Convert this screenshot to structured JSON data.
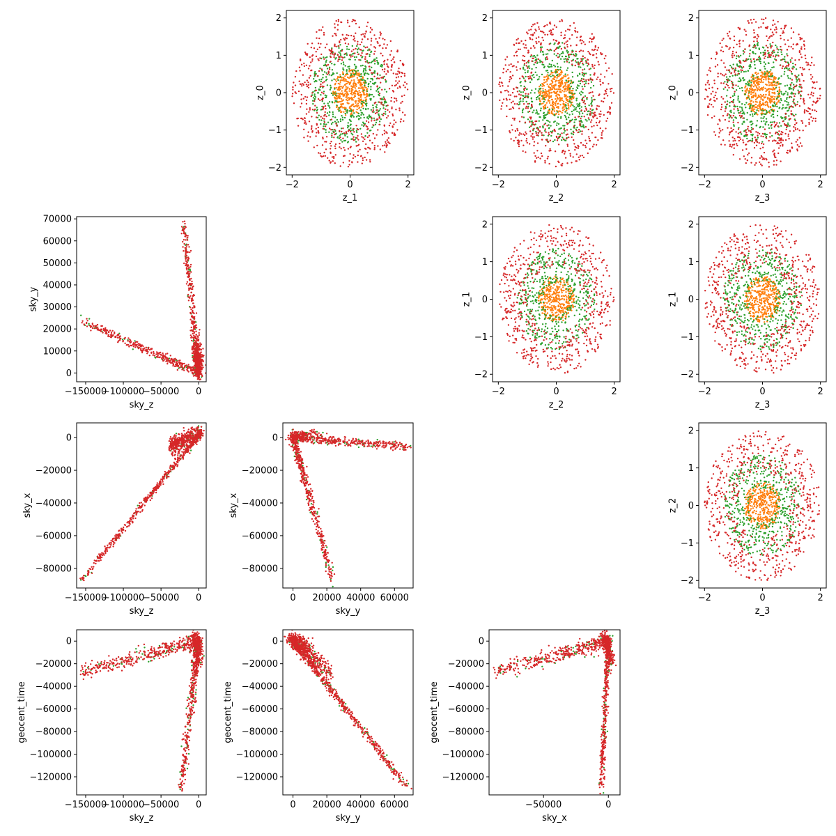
{
  "colors": {
    "orange": "#ff7f0e",
    "green": "#2ca02c",
    "red": "#d62728",
    "axes": "#000000",
    "background": "#ffffff"
  },
  "chart_data": [
    {
      "id": "z1-z0",
      "type": "scatter",
      "xlabel": "z_1",
      "ylabel": "z_0",
      "xlim": [
        -2.2,
        2.2
      ],
      "ylim": [
        -2.2,
        2.2
      ],
      "xticks": [
        -2,
        0,
        2
      ],
      "yticks": [
        -2,
        -1,
        0,
        1,
        2
      ],
      "series": [
        {
          "color": "orange",
          "shape": "disk",
          "radius_max": 0.62,
          "count": 380
        },
        {
          "color": "green",
          "shape": "ring",
          "radius_min": 0.45,
          "radius_max": 1.35,
          "count": 480
        },
        {
          "color": "red",
          "shape": "ring",
          "radius_min": 0.9,
          "radius_max": 2.0,
          "count": 620
        }
      ]
    },
    {
      "id": "z2-z0",
      "type": "scatter",
      "xlabel": "z_2",
      "ylabel": "z_0",
      "xlim": [
        -2.2,
        2.2
      ],
      "ylim": [
        -2.2,
        2.2
      ],
      "xticks": [
        -2,
        0,
        2
      ],
      "yticks": [
        -2,
        -1,
        0,
        1,
        2
      ],
      "series": [
        {
          "color": "orange",
          "shape": "disk",
          "radius_max": 0.62,
          "count": 380
        },
        {
          "color": "green",
          "shape": "ring",
          "radius_min": 0.45,
          "radius_max": 1.35,
          "count": 480
        },
        {
          "color": "red",
          "shape": "ring",
          "radius_min": 0.9,
          "radius_max": 2.0,
          "count": 620
        }
      ]
    },
    {
      "id": "z3-z0",
      "type": "scatter",
      "xlabel": "z_3",
      "ylabel": "z_0",
      "xlim": [
        -2.2,
        2.2
      ],
      "ylim": [
        -2.2,
        2.2
      ],
      "xticks": [
        -2,
        0,
        2
      ],
      "yticks": [
        -2,
        -1,
        0,
        1,
        2
      ],
      "series": [
        {
          "color": "orange",
          "shape": "disk",
          "radius_max": 0.62,
          "count": 380
        },
        {
          "color": "green",
          "shape": "ring",
          "radius_min": 0.45,
          "radius_max": 1.35,
          "count": 480
        },
        {
          "color": "red",
          "shape": "ring",
          "radius_min": 0.9,
          "radius_max": 2.0,
          "count": 620
        }
      ]
    },
    {
      "id": "z2-z1",
      "type": "scatter",
      "xlabel": "z_2",
      "ylabel": "z_1",
      "xlim": [
        -2.2,
        2.2
      ],
      "ylim": [
        -2.2,
        2.2
      ],
      "xticks": [
        -2,
        0,
        2
      ],
      "yticks": [
        -2,
        -1,
        0,
        1,
        2
      ],
      "series": [
        {
          "color": "orange",
          "shape": "disk",
          "radius_max": 0.62,
          "count": 380
        },
        {
          "color": "green",
          "shape": "ring",
          "radius_min": 0.45,
          "radius_max": 1.35,
          "count": 480
        },
        {
          "color": "red",
          "shape": "ring",
          "radius_min": 0.9,
          "radius_max": 2.0,
          "count": 620
        }
      ]
    },
    {
      "id": "z3-z1",
      "type": "scatter",
      "xlabel": "z_3",
      "ylabel": "z_1",
      "xlim": [
        -2.2,
        2.2
      ],
      "ylim": [
        -2.2,
        2.2
      ],
      "xticks": [
        -2,
        0,
        2
      ],
      "yticks": [
        -2,
        -1,
        0,
        1,
        2
      ],
      "series": [
        {
          "color": "orange",
          "shape": "disk",
          "radius_max": 0.62,
          "count": 380
        },
        {
          "color": "green",
          "shape": "ring",
          "radius_min": 0.45,
          "radius_max": 1.35,
          "count": 480
        },
        {
          "color": "red",
          "shape": "ring",
          "radius_min": 0.9,
          "radius_max": 2.0,
          "count": 620
        }
      ]
    },
    {
      "id": "z3-z2",
      "type": "scatter",
      "xlabel": "z_3",
      "ylabel": "z_2",
      "xlim": [
        -2.2,
        2.2
      ],
      "ylim": [
        -2.2,
        2.2
      ],
      "xticks": [
        -2,
        0,
        2
      ],
      "yticks": [
        -2,
        -1,
        0,
        1,
        2
      ],
      "series": [
        {
          "color": "orange",
          "shape": "disk",
          "radius_max": 0.62,
          "count": 380
        },
        {
          "color": "green",
          "shape": "ring",
          "radius_min": 0.45,
          "radius_max": 1.35,
          "count": 480
        },
        {
          "color": "red",
          "shape": "ring",
          "radius_min": 0.9,
          "radius_max": 2.0,
          "count": 620
        }
      ]
    },
    {
      "id": "skyz-skyy",
      "type": "scatter",
      "xlabel": "sky_z",
      "ylabel": "sky_y",
      "xlim": [
        -162000,
        10000
      ],
      "ylim": [
        -4000,
        71000
      ],
      "xticks": [
        -150000,
        -100000,
        -50000,
        0
      ],
      "yticks": [
        0,
        10000,
        20000,
        30000,
        40000,
        50000,
        60000,
        70000
      ],
      "series": [
        {
          "color": "green",
          "shape": "branches",
          "count": 120,
          "branches": [
            {
              "from": [
                0,
                0
              ],
              "to": [
                -155000,
                23500
              ],
              "weight": 0.35,
              "spread": [
                3000,
                900
              ]
            },
            {
              "from": [
                0,
                0
              ],
              "to": [
                -20000,
                68000
              ],
              "weight": 0.35,
              "spread": [
                2000,
                1500
              ]
            },
            {
              "from": [
                -3000,
                8000
              ],
              "to": [
                1500,
                4000
              ],
              "weight": 0.3,
              "spread": [
                3000,
                4000
              ]
            }
          ]
        },
        {
          "color": "red",
          "shape": "branches",
          "count": 1000,
          "branches": [
            {
              "from": [
                0,
                0
              ],
              "to": [
                -155000,
                23500
              ],
              "weight": 0.35,
              "spread": [
                3000,
                900
              ]
            },
            {
              "from": [
                0,
                0
              ],
              "to": [
                -20000,
                68000
              ],
              "weight": 0.35,
              "spread": [
                2000,
                1500
              ]
            },
            {
              "from": [
                -3000,
                8000
              ],
              "to": [
                1500,
                4000
              ],
              "weight": 0.3,
              "spread": [
                3000,
                4000
              ]
            }
          ]
        }
      ]
    },
    {
      "id": "skyz-skyx",
      "type": "scatter",
      "xlabel": "sky_z",
      "ylabel": "sky_x",
      "xlim": [
        -162000,
        10000
      ],
      "ylim": [
        -92000,
        9000
      ],
      "xticks": [
        -150000,
        -100000,
        -50000,
        0
      ],
      "yticks": [
        -80000,
        -60000,
        -40000,
        -20000,
        0
      ],
      "series": [
        {
          "color": "green",
          "shape": "branches",
          "count": 100,
          "branches": [
            {
              "from": [
                3000,
                3000
              ],
              "to": [
                -155000,
                -87000
              ],
              "weight": 0.55,
              "spread": [
                1500,
                1000
              ]
            },
            {
              "from": [
                -35000,
                -5000
              ],
              "to": [
                3000,
                3000
              ],
              "weight": 0.45,
              "spread": [
                2500,
                2500
              ]
            }
          ]
        },
        {
          "color": "red",
          "shape": "branches",
          "count": 900,
          "branches": [
            {
              "from": [
                3000,
                3000
              ],
              "to": [
                -155000,
                -87000
              ],
              "weight": 0.55,
              "spread": [
                1500,
                1000
              ]
            },
            {
              "from": [
                -35000,
                -5000
              ],
              "to": [
                3000,
                3000
              ],
              "weight": 0.45,
              "spread": [
                2500,
                2500
              ]
            }
          ]
        }
      ]
    },
    {
      "id": "skyy-skyx",
      "type": "scatter",
      "xlabel": "sky_y",
      "ylabel": "sky_x",
      "xlim": [
        -6000,
        71000
      ],
      "ylim": [
        -92000,
        9000
      ],
      "xticks": [
        0,
        20000,
        40000,
        60000
      ],
      "yticks": [
        -80000,
        -60000,
        -40000,
        -20000,
        0
      ],
      "series": [
        {
          "color": "green",
          "shape": "branches",
          "count": 120,
          "branches": [
            {
              "from": [
                0,
                0
              ],
              "to": [
                68000,
                -5500
              ],
              "weight": 0.45,
              "spread": [
                1500,
                1200
              ]
            },
            {
              "from": [
                0,
                0
              ],
              "to": [
                23500,
                -87000
              ],
              "weight": 0.45,
              "spread": [
                900,
                2000
              ]
            },
            {
              "from": [
                500,
                2000
              ],
              "to": [
                16000,
                2500
              ],
              "weight": 0.1,
              "spread": [
                2000,
                1000
              ]
            }
          ]
        },
        {
          "color": "red",
          "shape": "branches",
          "count": 900,
          "branches": [
            {
              "from": [
                0,
                0
              ],
              "to": [
                68000,
                -5500
              ],
              "weight": 0.45,
              "spread": [
                1500,
                1200
              ]
            },
            {
              "from": [
                0,
                0
              ],
              "to": [
                23500,
                -87000
              ],
              "weight": 0.45,
              "spread": [
                900,
                2000
              ]
            },
            {
              "from": [
                500,
                2000
              ],
              "to": [
                16000,
                2500
              ],
              "weight": 0.1,
              "spread": [
                2000,
                1000
              ]
            }
          ]
        }
      ]
    },
    {
      "id": "skyz-geocent",
      "type": "scatter",
      "xlabel": "sky_z",
      "ylabel": "geocent_time",
      "xlim": [
        -162000,
        10000
      ],
      "ylim": [
        -136000,
        10000
      ],
      "xticks": [
        -150000,
        -100000,
        -50000,
        0
      ],
      "yticks": [
        -120000,
        -100000,
        -80000,
        -60000,
        -40000,
        -20000,
        0
      ],
      "series": [
        {
          "color": "green",
          "shape": "branches",
          "count": 150,
          "branches": [
            {
              "from": [
                0,
                0
              ],
              "to": [
                -155000,
                -27000
              ],
              "weight": 0.4,
              "spread": [
                3000,
                3500
              ]
            },
            {
              "from": [
                0,
                0
              ],
              "to": [
                -24000,
                -132000
              ],
              "weight": 0.4,
              "spread": [
                2500,
                2000
              ]
            },
            {
              "from": [
                -5000,
                3000
              ],
              "to": [
                1000,
                -20000
              ],
              "weight": 0.2,
              "spread": [
                3000,
                3000
              ]
            }
          ]
        },
        {
          "color": "red",
          "shape": "branches",
          "count": 1000,
          "branches": [
            {
              "from": [
                0,
                0
              ],
              "to": [
                -155000,
                -27000
              ],
              "weight": 0.4,
              "spread": [
                3000,
                3500
              ]
            },
            {
              "from": [
                0,
                0
              ],
              "to": [
                -24000,
                -132000
              ],
              "weight": 0.4,
              "spread": [
                2500,
                2000
              ]
            },
            {
              "from": [
                -5000,
                3000
              ],
              "to": [
                1000,
                -20000
              ],
              "weight": 0.2,
              "spread": [
                3000,
                3000
              ]
            }
          ]
        }
      ]
    },
    {
      "id": "skyy-geocent",
      "type": "scatter",
      "xlabel": "sky_y",
      "ylabel": "geocent_time",
      "xlim": [
        -6000,
        71000
      ],
      "ylim": [
        -136000,
        10000
      ],
      "xticks": [
        0,
        20000,
        40000,
        60000
      ],
      "yticks": [
        -120000,
        -100000,
        -80000,
        -60000,
        -40000,
        -20000,
        0
      ],
      "series": [
        {
          "color": "green",
          "shape": "branches",
          "count": 140,
          "branches": [
            {
              "from": [
                0,
                0
              ],
              "to": [
                68000,
                -130000
              ],
              "weight": 0.55,
              "spread": [
                900,
                1800
              ]
            },
            {
              "from": [
                0,
                2000
              ],
              "to": [
                22000,
                -28000
              ],
              "weight": 0.3,
              "spread": [
                1500,
                3000
              ]
            },
            {
              "from": [
                -1000,
                3000
              ],
              "to": [
                9000,
                -5000
              ],
              "weight": 0.15,
              "spread": [
                2000,
                2500
              ]
            }
          ]
        },
        {
          "color": "red",
          "shape": "branches",
          "count": 1000,
          "branches": [
            {
              "from": [
                0,
                0
              ],
              "to": [
                68000,
                -130000
              ],
              "weight": 0.55,
              "spread": [
                900,
                1800
              ]
            },
            {
              "from": [
                0,
                2000
              ],
              "to": [
                22000,
                -28000
              ],
              "weight": 0.3,
              "spread": [
                1500,
                3000
              ]
            },
            {
              "from": [
                -1000,
                3000
              ],
              "to": [
                9000,
                -5000
              ],
              "weight": 0.15,
              "spread": [
                2000,
                2500
              ]
            }
          ]
        }
      ]
    },
    {
      "id": "skyx-geocent",
      "type": "scatter",
      "xlabel": "sky_x",
      "ylabel": "geocent_time",
      "xlim": [
        -92000,
        9000
      ],
      "ylim": [
        -136000,
        10000
      ],
      "xticks": [
        -50000,
        0
      ],
      "yticks": [
        -120000,
        -100000,
        -80000,
        -60000,
        -40000,
        -20000,
        0
      ],
      "series": [
        {
          "color": "green",
          "shape": "branches",
          "count": 150,
          "branches": [
            {
              "from": [
                0,
                0
              ],
              "to": [
                -87000,
                -27000
              ],
              "weight": 0.4,
              "spread": [
                1800,
                3500
              ]
            },
            {
              "from": [
                0,
                0
              ],
              "to": [
                -5500,
                -131000
              ],
              "weight": 0.4,
              "spread": [
                1000,
                2000
              ]
            },
            {
              "from": [
                -3000,
                3000
              ],
              "to": [
                3000,
                -20000
              ],
              "weight": 0.2,
              "spread": [
                1500,
                3000
              ]
            }
          ]
        },
        {
          "color": "red",
          "shape": "branches",
          "count": 1000,
          "branches": [
            {
              "from": [
                0,
                0
              ],
              "to": [
                -87000,
                -27000
              ],
              "weight": 0.4,
              "spread": [
                1800,
                3500
              ]
            },
            {
              "from": [
                0,
                0
              ],
              "to": [
                -5500,
                -131000
              ],
              "weight": 0.4,
              "spread": [
                1000,
                2000
              ]
            },
            {
              "from": [
                -3000,
                3000
              ],
              "to": [
                3000,
                -20000
              ],
              "weight": 0.2,
              "spread": [
                1500,
                3000
              ]
            }
          ]
        }
      ]
    }
  ]
}
